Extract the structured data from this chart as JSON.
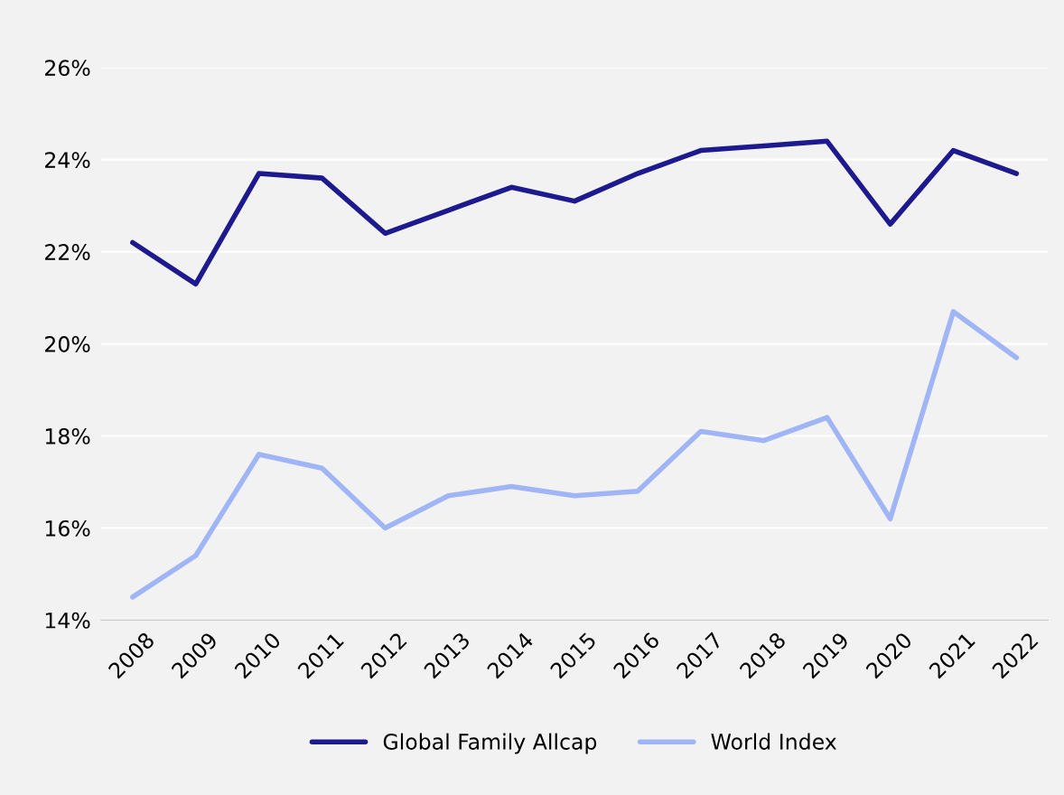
{
  "chart_data": {
    "type": "line",
    "categories": [
      "2008",
      "2009",
      "2010",
      "2011",
      "2012",
      "2013",
      "2014",
      "2015",
      "2016",
      "2017",
      "2018",
      "2019",
      "2020",
      "2021",
      "2022"
    ],
    "series": [
      {
        "name": "Global Family Allcap",
        "color": "#1c1a8e",
        "values": [
          22.2,
          21.3,
          23.7,
          23.6,
          22.4,
          22.9,
          23.4,
          23.1,
          23.7,
          24.2,
          24.3,
          24.4,
          22.6,
          24.2,
          23.7
        ]
      },
      {
        "name": "World Index",
        "color": "#9fb5f5",
        "values": [
          14.5,
          15.4,
          17.6,
          17.3,
          16.0,
          16.7,
          16.9,
          16.7,
          16.8,
          18.1,
          17.9,
          18.4,
          16.2,
          20.7,
          19.7
        ]
      }
    ],
    "ylim": [
      14,
      26
    ],
    "yticks": [
      {
        "value": 14,
        "label": "14%"
      },
      {
        "value": 16,
        "label": "16%"
      },
      {
        "value": 18,
        "label": "18%"
      },
      {
        "value": 20,
        "label": "20%"
      },
      {
        "value": 22,
        "label": "22%"
      },
      {
        "value": 24,
        "label": "24%"
      },
      {
        "value": 26,
        "label": "26%"
      }
    ],
    "grid": "y",
    "legend": "bottom",
    "marker": "none",
    "line_style": "solid"
  }
}
